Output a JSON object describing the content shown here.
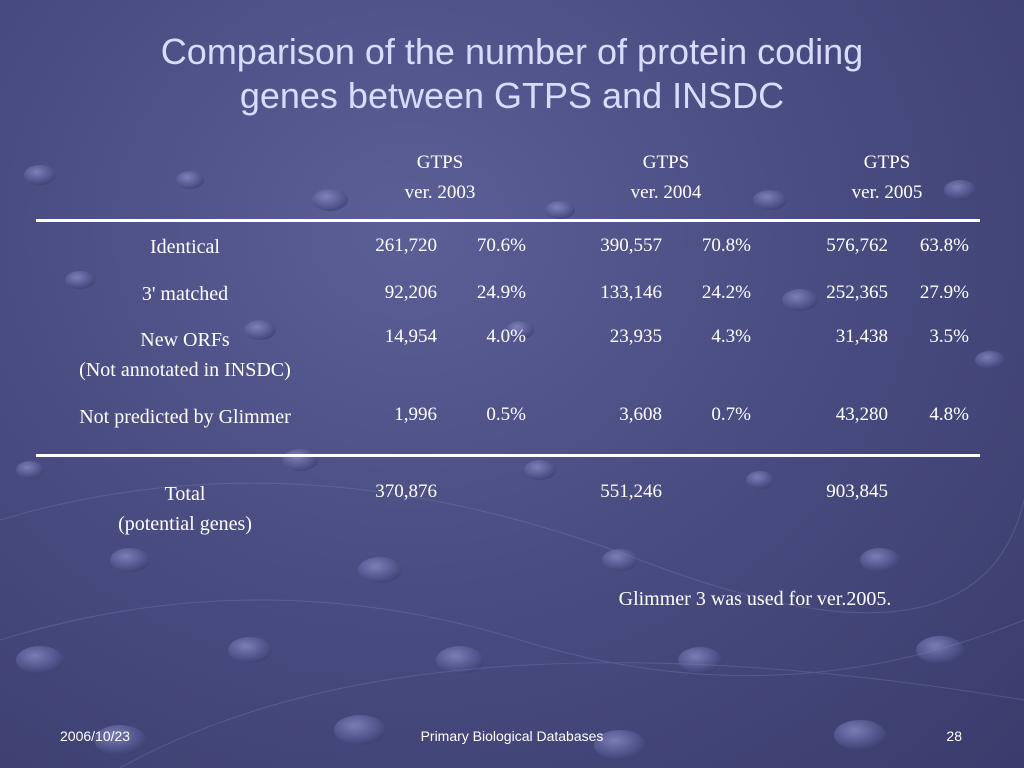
{
  "title": {
    "line1": "Comparison of the number of protein coding",
    "line2": "genes between GTPS and INSDC"
  },
  "columns": [
    {
      "name": "GTPS",
      "version": "ver. 2003"
    },
    {
      "name": "GTPS",
      "version": "ver. 2004"
    },
    {
      "name": "GTPS",
      "version": "ver. 2005"
    }
  ],
  "rows": [
    {
      "label_lines": [
        "Identical"
      ],
      "values": [
        {
          "count": "261,720",
          "percent": "70.6%"
        },
        {
          "count": "390,557",
          "percent": "70.8%"
        },
        {
          "count": "576,762",
          "percent": "63.8%"
        }
      ]
    },
    {
      "label_lines": [
        "3' matched"
      ],
      "values": [
        {
          "count": "92,206",
          "percent": "24.9%"
        },
        {
          "count": "133,146",
          "percent": "24.2%"
        },
        {
          "count": "252,365",
          "percent": "27.9%"
        }
      ]
    },
    {
      "label_lines": [
        "New ORFs",
        "(Not annotated in INSDC)"
      ],
      "values": [
        {
          "count": "14,954",
          "percent": "4.0%"
        },
        {
          "count": "23,935",
          "percent": "4.3%"
        },
        {
          "count": "31,438",
          "percent": "3.5%"
        }
      ]
    },
    {
      "label_lines": [
        "Not predicted by Glimmer"
      ],
      "values": [
        {
          "count": "1,996",
          "percent": "0.5%"
        },
        {
          "count": "3,608",
          "percent": "0.7%"
        },
        {
          "count": "43,280",
          "percent": "4.8%"
        }
      ]
    }
  ],
  "total": {
    "label_lines": [
      "Total",
      "(potential genes)"
    ],
    "values": [
      "370,876",
      "551,246",
      "903,845"
    ]
  },
  "note": "Glimmer 3 was used for ver.2005.",
  "footer": {
    "date": "2006/10/23",
    "course": "Primary Biological Databases",
    "page": "28"
  }
}
